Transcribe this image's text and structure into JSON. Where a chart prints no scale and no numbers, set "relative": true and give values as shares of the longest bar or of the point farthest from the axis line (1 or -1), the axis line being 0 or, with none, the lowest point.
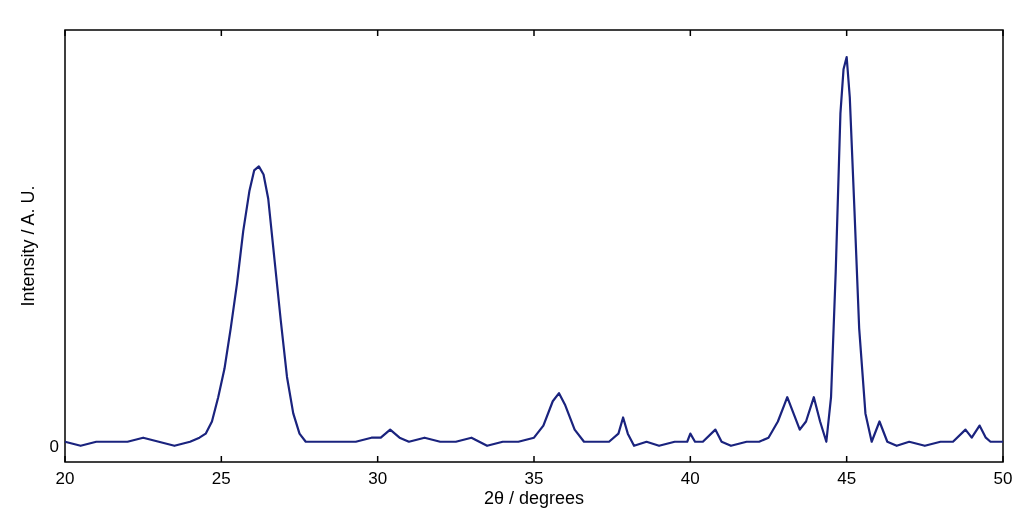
{
  "chart_data": {
    "type": "line",
    "relative": true,
    "xlabel": "2θ / degrees",
    "ylabel": "Intensity / A. U.",
    "xlim": [
      20,
      50
    ],
    "xticks": [
      20,
      25,
      30,
      35,
      40,
      45,
      50
    ],
    "annotations": [
      {
        "text": "0",
        "x": 20,
        "y": 0.04
      }
    ],
    "grid": false,
    "marker": "none",
    "line_style": "solid",
    "series": [
      {
        "color": "#1a237e",
        "x": [
          20,
          20.5,
          21,
          21.5,
          22,
          22.5,
          23,
          23.5,
          24,
          24.3,
          24.5,
          24.7,
          24.9,
          25.1,
          25.3,
          25.5,
          25.7,
          25.9,
          26.05,
          26.2,
          26.35,
          26.5,
          26.7,
          26.9,
          27.1,
          27.3,
          27.5,
          27.7,
          27.9,
          28.3,
          28.8,
          29.3,
          29.8,
          30.1,
          30.4,
          30.7,
          31,
          31.5,
          32,
          32.5,
          33,
          33.5,
          34,
          34.5,
          35,
          35.3,
          35.6,
          35.8,
          36,
          36.3,
          36.6,
          37,
          37.4,
          37.7,
          37.85,
          38,
          38.2,
          38.6,
          39,
          39.5,
          39.9,
          40,
          40.15,
          40.4,
          40.8,
          41,
          41.3,
          41.8,
          42.2,
          42.5,
          42.8,
          43,
          43.1,
          43.3,
          43.5,
          43.7,
          43.95,
          44.15,
          44.35,
          44.5,
          44.65,
          44.8,
          44.9,
          45,
          45.1,
          45.25,
          45.4,
          45.6,
          45.8,
          46.05,
          46.3,
          46.6,
          47,
          47.5,
          48,
          48.4,
          48.8,
          49,
          49.25,
          49.45,
          49.6,
          50
        ],
        "values": [
          0.05,
          0.04,
          0.05,
          0.05,
          0.05,
          0.06,
          0.05,
          0.04,
          0.05,
          0.06,
          0.07,
          0.1,
          0.16,
          0.23,
          0.33,
          0.44,
          0.57,
          0.67,
          0.72,
          0.73,
          0.71,
          0.65,
          0.5,
          0.35,
          0.21,
          0.12,
          0.07,
          0.05,
          0.05,
          0.05,
          0.05,
          0.05,
          0.06,
          0.06,
          0.08,
          0.06,
          0.05,
          0.06,
          0.05,
          0.05,
          0.06,
          0.04,
          0.05,
          0.05,
          0.06,
          0.09,
          0.15,
          0.17,
          0.14,
          0.08,
          0.05,
          0.05,
          0.05,
          0.07,
          0.11,
          0.07,
          0.04,
          0.05,
          0.04,
          0.05,
          0.05,
          0.07,
          0.05,
          0.05,
          0.08,
          0.05,
          0.04,
          0.05,
          0.05,
          0.06,
          0.1,
          0.14,
          0.16,
          0.12,
          0.08,
          0.1,
          0.16,
          0.1,
          0.05,
          0.16,
          0.47,
          0.86,
          0.97,
          1.0,
          0.9,
          0.62,
          0.33,
          0.12,
          0.05,
          0.1,
          0.05,
          0.04,
          0.05,
          0.04,
          0.05,
          0.05,
          0.08,
          0.06,
          0.09,
          0.06,
          0.05,
          0.05
        ]
      }
    ]
  }
}
